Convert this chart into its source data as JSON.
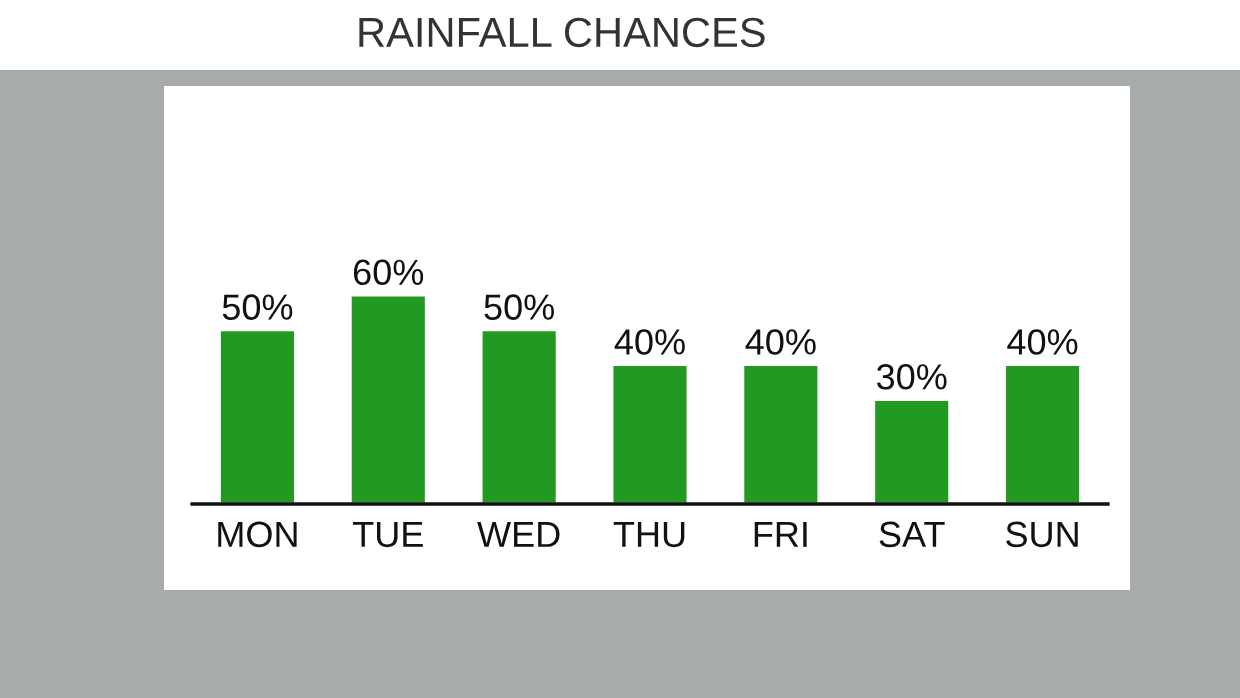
{
  "chart_data": {
    "type": "bar",
    "title": "RAINFALL CHANCES",
    "categories": [
      "MON",
      "TUE",
      "WED",
      "THU",
      "FRI",
      "SAT",
      "SUN"
    ],
    "values": [
      50,
      60,
      50,
      40,
      40,
      30,
      40
    ],
    "value_labels": [
      "50%",
      "60%",
      "50%",
      "40%",
      "40%",
      "30%",
      "40%"
    ],
    "color": "#229a22"
  }
}
